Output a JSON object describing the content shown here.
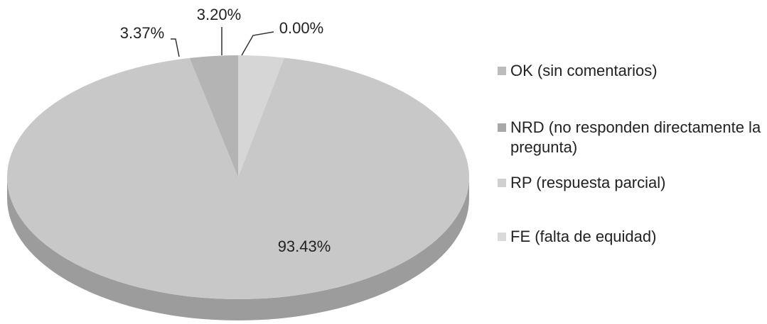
{
  "chart_data": {
    "type": "pie",
    "title": "",
    "categories": [
      "OK (sin comentarios)",
      "NRD (no responden directamente la pregunta)",
      "RP (respuesta parcial)",
      "FE (falta de equidad)"
    ],
    "values": [
      93.43,
      3.37,
      3.2,
      0.0
    ],
    "data_labels": [
      "93.43%",
      "3.37%",
      "3.20%",
      "0.00%"
    ],
    "colors": [
      "#c8c8c8",
      "#b4b4b4",
      "#d6d6d6",
      "#dcdcdc"
    ],
    "legend_position": "right",
    "style": "3d"
  },
  "legend": {
    "items": [
      {
        "label": "OK (sin comentarios)",
        "color": "#bcbcbc"
      },
      {
        "label": "NRD (no responden directamente la pregunta)",
        "color": "#a8a8a8"
      },
      {
        "label": "RP (respuesta parcial)",
        "color": "#d0d0d0"
      },
      {
        "label": "FE (falta de equidad)",
        "color": "#dadada"
      }
    ]
  }
}
